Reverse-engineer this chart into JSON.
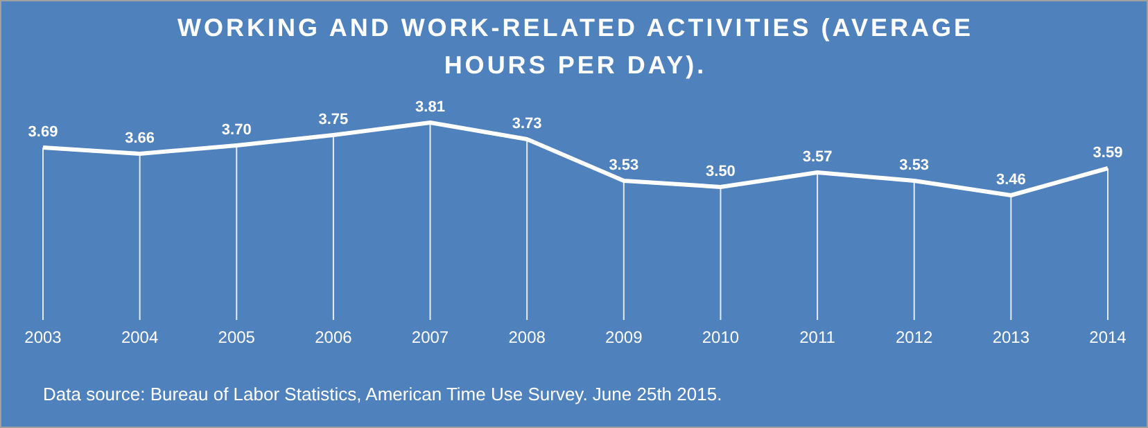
{
  "chart_data": {
    "type": "line",
    "title": "WORKING AND WORK-RELATED ACTIVITIES  (AVERAGE HOURS PER DAY).",
    "categories": [
      "2003",
      "2004",
      "2005",
      "2006",
      "2007",
      "2008",
      "2009",
      "2010",
      "2011",
      "2012",
      "2013",
      "2014"
    ],
    "values": [
      3.69,
      3.66,
      3.7,
      3.75,
      3.81,
      3.73,
      3.53,
      3.5,
      3.57,
      3.53,
      3.46,
      3.59
    ],
    "value_labels": [
      "3.69",
      "3.66",
      "3.70",
      "3.75",
      "3.81",
      "3.73",
      "3.53",
      "3.50",
      "3.57",
      "3.53",
      "3.46",
      "3.59"
    ],
    "color": "#ffffff",
    "marker": "none",
    "line_style": "solid",
    "grid": "x",
    "annotations": [
      "Data source: Bureau of Labor Statistics, American Time Use Survey. June 25th 2015."
    ]
  }
}
